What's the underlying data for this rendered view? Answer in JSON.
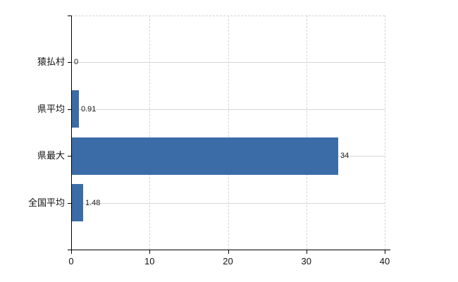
{
  "chart_data": {
    "type": "bar",
    "orientation": "horizontal",
    "title": "",
    "xlabel": "",
    "ylabel": "",
    "categories": [
      "猿払村",
      "県平均",
      "県最大",
      "全国平均"
    ],
    "values": [
      0,
      0.91,
      34,
      1.48
    ],
    "value_labels": [
      "0",
      "0.91",
      "34",
      "1.48"
    ],
    "xlim": [
      0,
      40
    ],
    "x_ticks": [
      0,
      10,
      20,
      30,
      40
    ],
    "x_tick_labels": [
      "0",
      "10",
      "20",
      "30",
      "40"
    ],
    "grid": true,
    "legend": "none",
    "colors": {
      "bar": "#3b6ca7",
      "gridline": "#d5d9d5",
      "axis": "#000000",
      "text": "#111111",
      "background": "#ffffff"
    }
  }
}
